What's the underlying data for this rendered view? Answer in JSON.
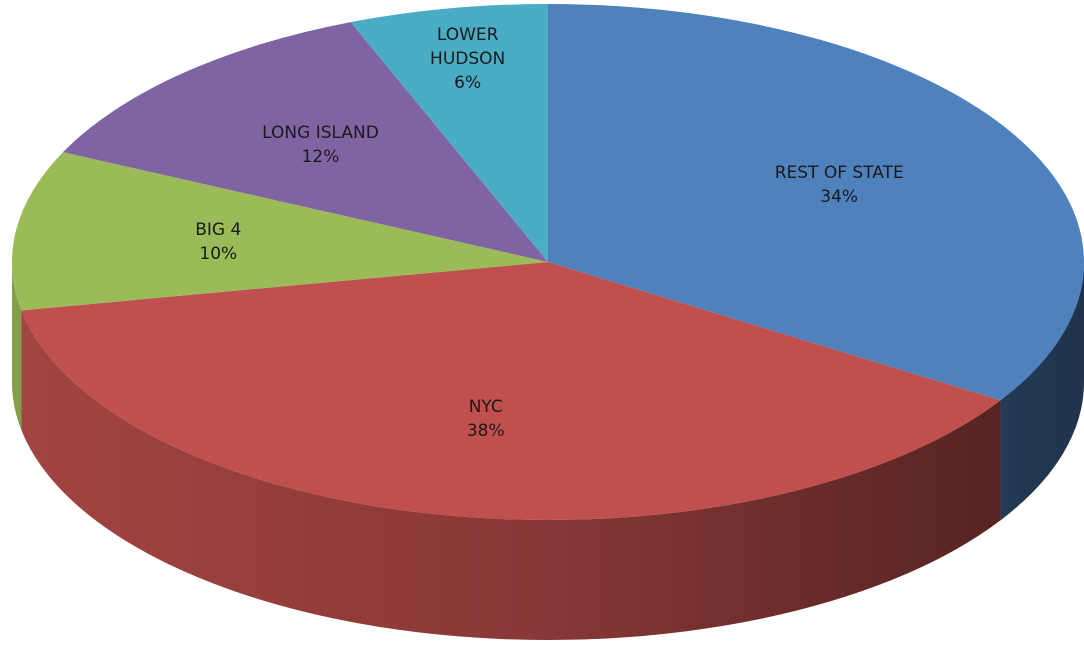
{
  "chart_data": {
    "type": "pie",
    "three_d": true,
    "categories": [
      "REST OF STATE",
      "NYC",
      "BIG 4",
      "LONG ISLAND",
      "LOWER HUDSON"
    ],
    "values": [
      34,
      38,
      10,
      12,
      6
    ],
    "value_labels": [
      "34%",
      "38%",
      "10%",
      "12%",
      "6%"
    ],
    "colors": [
      "#4f81bd",
      "#c0504d",
      "#9bbb59",
      "#8064a2",
      "#4bacc6"
    ]
  }
}
